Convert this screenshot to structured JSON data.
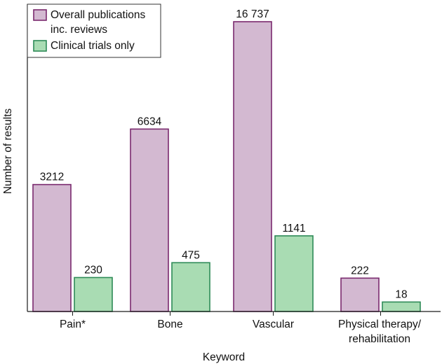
{
  "chart_data": {
    "type": "bar",
    "categories": [
      "Pain*",
      "Bone",
      "Vascular",
      [
        "Physical therapy/",
        "rehabilitation"
      ]
    ],
    "series": [
      {
        "name": [
          "Overall publications",
          "inc. reviews"
        ],
        "values": [
          3212,
          6634,
          16737,
          222
        ],
        "fill": "#d3b9d1",
        "stroke": "#7a2a6e"
      },
      {
        "name": [
          "Clinical trials only"
        ],
        "values": [
          230,
          475,
          1141,
          18
        ],
        "fill": "#a9dcb3",
        "stroke": "#2e8b57"
      }
    ],
    "bar_labels": [
      [
        "3212",
        "6634",
        "16 737",
        "222"
      ],
      [
        "230",
        "475",
        "1141",
        "18"
      ]
    ],
    "xlabel": "Keyword",
    "ylabel": "Number of results",
    "scale": "sqrt",
    "legend_position": "top-left"
  }
}
